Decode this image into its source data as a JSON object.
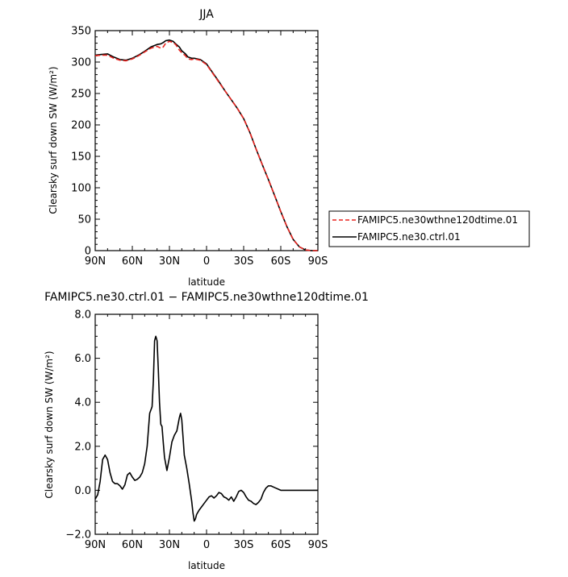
{
  "chart_data": [
    {
      "type": "line",
      "title": "JJA",
      "xlabel": "latitude",
      "ylabel": "Clearsky surf down SW (W/m²)",
      "xlim": [
        -90,
        90
      ],
      "ylim": [
        0,
        350
      ],
      "x_ticks": [
        "90N",
        "60N",
        "30N",
        "0",
        "30S",
        "60S",
        "90S"
      ],
      "y_ticks": [
        "0",
        "50",
        "100",
        "150",
        "200",
        "250",
        "300",
        "350"
      ],
      "legend": "right",
      "series": [
        {
          "name": "FAMIPC5.ne30wthne120dtime.01",
          "color": "#e8231e",
          "dash": "dashed",
          "x": [
            -90,
            -85,
            -80,
            -75,
            -70,
            -65,
            -60,
            -55,
            -50,
            -45,
            -40,
            -37,
            -35,
            -33,
            -30,
            -27,
            -25,
            -22,
            -20,
            -17,
            -15,
            -12,
            -10,
            -5,
            0,
            5,
            10,
            15,
            20,
            25,
            30,
            35,
            40,
            45,
            50,
            55,
            60,
            65,
            70,
            75,
            80,
            85,
            90
          ],
          "y": [
            310,
            311,
            311,
            306,
            303,
            302,
            305,
            310,
            316,
            322,
            325,
            322,
            324,
            330,
            333,
            331,
            328,
            319,
            315,
            310,
            305,
            304,
            305,
            303,
            296,
            282,
            268,
            254,
            240,
            226,
            210,
            188,
            162,
            137,
            113,
            88,
            62,
            38,
            18,
            6,
            1,
            0,
            0
          ]
        },
        {
          "name": "FAMIPC5.ne30.ctrl.01",
          "color": "#000000",
          "dash": "solid",
          "x": [
            -90,
            -85,
            -80,
            -75,
            -70,
            -65,
            -60,
            -55,
            -50,
            -45,
            -40,
            -37,
            -35,
            -33,
            -30,
            -27,
            -25,
            -22,
            -20,
            -17,
            -15,
            -12,
            -10,
            -5,
            0,
            5,
            10,
            15,
            20,
            25,
            30,
            35,
            40,
            45,
            50,
            55,
            60,
            65,
            70,
            75,
            80,
            85,
            90
          ],
          "y": [
            311,
            312,
            313,
            308,
            304,
            303,
            306,
            311,
            317,
            324,
            328,
            329,
            331,
            334,
            335,
            333,
            329,
            324,
            318,
            313,
            308,
            306,
            306,
            304,
            297,
            283,
            269,
            254,
            240,
            226,
            210,
            188,
            162,
            137,
            113,
            88,
            62,
            38,
            18,
            6,
            1,
            0,
            0
          ]
        }
      ]
    },
    {
      "type": "line",
      "title": "FAMIPC5.ne30.ctrl.01 − FAMIPC5.ne30wthne120dtime.01",
      "xlabel": "latitude",
      "ylabel": "Clearsky surf down SW (W/m²)",
      "xlim": [
        -90,
        90
      ],
      "ylim": [
        -2,
        8
      ],
      "x_ticks": [
        "90N",
        "60N",
        "30N",
        "0",
        "30S",
        "60S",
        "90S"
      ],
      "y_ticks": [
        "−2.0",
        "0.0",
        "2.0",
        "4.0",
        "6.0",
        "8.0"
      ],
      "series": [
        {
          "color": "#000000",
          "x": [
            -90,
            -88,
            -86,
            -84,
            -82,
            -80,
            -78,
            -76,
            -74,
            -72,
            -70,
            -68,
            -66,
            -64,
            -62,
            -60,
            -58,
            -56,
            -54,
            -52,
            -50,
            -48,
            -46,
            -44,
            -43,
            -42,
            -41,
            -40,
            -39,
            -38,
            -37,
            -36,
            -35,
            -34,
            -32,
            -30,
            -28,
            -26,
            -24,
            -22,
            -21,
            -20,
            -19,
            -18,
            -16,
            -14,
            -12,
            -11,
            -10,
            -9,
            -8,
            -6,
            -4,
            -2,
            0,
            2,
            4,
            6,
            8,
            10,
            12,
            14,
            16,
            18,
            20,
            22,
            24,
            26,
            28,
            30,
            32,
            34,
            36,
            38,
            40,
            42,
            44,
            46,
            48,
            50,
            52,
            54,
            56,
            58,
            60,
            62,
            64,
            66,
            68,
            70,
            72,
            74,
            76,
            78,
            80,
            82,
            84,
            86,
            88,
            90
          ],
          "y": [
            -0.4,
            -0.2,
            0.4,
            1.4,
            1.6,
            1.4,
            0.8,
            0.4,
            0.3,
            0.3,
            0.2,
            0.05,
            0.25,
            0.7,
            0.8,
            0.6,
            0.45,
            0.5,
            0.6,
            0.8,
            1.2,
            2.0,
            3.5,
            3.8,
            5.0,
            6.8,
            7.0,
            6.8,
            5.5,
            4.0,
            3.0,
            2.9,
            2.2,
            1.5,
            0.9,
            1.5,
            2.2,
            2.5,
            2.7,
            3.3,
            3.5,
            3.2,
            2.4,
            1.6,
            1.0,
            0.3,
            -0.5,
            -1.0,
            -1.4,
            -1.3,
            -1.1,
            -0.9,
            -0.75,
            -0.6,
            -0.45,
            -0.3,
            -0.25,
            -0.35,
            -0.25,
            -0.1,
            -0.15,
            -0.3,
            -0.35,
            -0.45,
            -0.3,
            -0.5,
            -0.3,
            -0.05,
            0.0,
            -0.1,
            -0.3,
            -0.45,
            -0.5,
            -0.6,
            -0.65,
            -0.55,
            -0.4,
            -0.1,
            0.1,
            0.2,
            0.2,
            0.15,
            0.1,
            0.05,
            0.0,
            0.0,
            0.0,
            0.0,
            0.0,
            0.0,
            0.0,
            0.0,
            0.0,
            0.0,
            0.0,
            0.0,
            0.0,
            0.0,
            0.0,
            0.0
          ]
        }
      ]
    }
  ]
}
